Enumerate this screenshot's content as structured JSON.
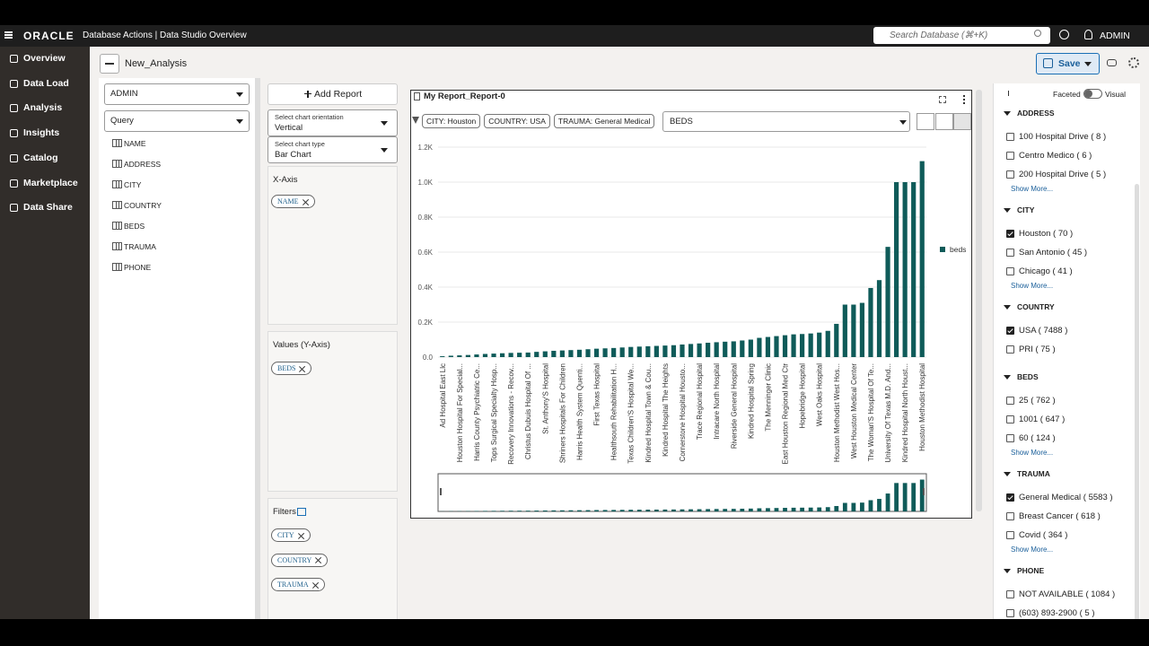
{
  "header": {
    "brand": "ORACLE",
    "product": "Database Actions | Data Studio Overview",
    "search_placeholder": "Search Database (⌘+K)",
    "user": "ADMIN"
  },
  "nav": [
    "Overview",
    "Data Load",
    "Analysis",
    "Insights",
    "Catalog",
    "Marketplace",
    "Data Share"
  ],
  "analysis": {
    "title": "New_Analysis",
    "save": "Save"
  },
  "source": {
    "schema": "ADMIN",
    "source": "Query",
    "fields": [
      "NAME",
      "ADDRESS",
      "CITY",
      "COUNTRY",
      "BEDS",
      "TRAUMA",
      "PHONE"
    ]
  },
  "config": {
    "add_report": "Add Report",
    "orientation_label": "Select chart orientation",
    "orientation": "Vertical",
    "type_label": "Select chart type",
    "chart_type": "Bar Chart",
    "x_axis_label": "X-Axis",
    "x_axis_fields": [
      "NAME"
    ],
    "y_axis_label": "Values (Y-Axis)",
    "y_axis_fields": [
      "BEDS"
    ],
    "filters_label": "Filters",
    "filters": [
      "CITY",
      "COUNTRY",
      "TRAUMA"
    ]
  },
  "report": {
    "title": "My Report_Report-0",
    "filter_chips": [
      "CITY: Houston",
      "COUNTRY: USA",
      "TRAUMA: General Medical"
    ],
    "measure": "BEDS"
  },
  "chart_data": {
    "type": "bar",
    "categories": [
      "Ad Hospital East Llc",
      null,
      "Houston Hospital For Special...",
      null,
      "Harris County Psychiatric Ce...",
      null,
      "Tops Surgical Specialty Hosp...",
      null,
      "Recovery Innovations - Recov...",
      null,
      "Christus Dubuis Hospital Of ...",
      null,
      "St. Anthony'S Hospital",
      null,
      "Shriners Hospitals For Children",
      null,
      "Harris Health System Quenti...",
      null,
      "First Texas Hospital",
      null,
      "Healthsouth Rehabilitation H...",
      null,
      "Texas Children'S Hospital We...",
      null,
      "Kindred Hospital Town & Cou...",
      null,
      "Kindred Hospital The Heights",
      null,
      "Cornerstone Hospital Housto...",
      null,
      "Trace Regional Hospital",
      null,
      "Intracare North Hospital",
      null,
      "Riverside General Hospital",
      null,
      "Kindred Hospital Spring",
      null,
      "The Menninger Clinic",
      null,
      "East Houston Regional Med Ctr",
      null,
      "Hopebridge Hospital",
      null,
      "West Oaks Hospital",
      null,
      "Houston Methodist West Hos...",
      null,
      "West Houston Medical Center",
      null,
      "The Woman'S Hospital Of Te...",
      null,
      "University Of Texas M.D. And...",
      null,
      "Kindred Hospital North Houst...",
      null,
      "Houston Methodist Hospital"
    ],
    "series": [
      {
        "name": "beds",
        "color": "#0f5b59",
        "values": [
          5,
          8,
          10,
          12,
          15,
          18,
          20,
          22,
          24,
          25,
          26,
          30,
          33,
          36,
          38,
          40,
          42,
          45,
          48,
          50,
          52,
          55,
          58,
          60,
          62,
          64,
          66,
          68,
          72,
          75,
          78,
          82,
          85,
          88,
          90,
          95,
          100,
          110,
          115,
          120,
          125,
          130,
          132,
          135,
          140,
          150,
          190,
          300,
          300,
          310,
          395,
          440,
          630,
          1000,
          1000,
          1000,
          1120
        ]
      }
    ],
    "ylim": [
      0,
      1200
    ],
    "yticks": [
      {
        "value": 0,
        "label": "0.0"
      },
      {
        "value": 200,
        "label": "0.2K"
      },
      {
        "value": 400,
        "label": "0.4K"
      },
      {
        "value": 600,
        "label": "0.6K"
      },
      {
        "value": 800,
        "label": "0.8K"
      },
      {
        "value": 1000,
        "label": "1.0K"
      },
      {
        "value": 1200,
        "label": "1.2K"
      }
    ],
    "grid": true,
    "legend": "right"
  },
  "facets": {
    "faceted": "Faceted",
    "visual": "Visual",
    "groups": [
      {
        "name": "ADDRESS",
        "items": [
          {
            "label": "100 Hospital Drive ( 8 )",
            "checked": false
          },
          {
            "label": "Centro Medico ( 6 )",
            "checked": false
          },
          {
            "label": "200 Hospital Drive ( 5 )",
            "checked": false
          }
        ],
        "more": "Show More..."
      },
      {
        "name": "CITY",
        "items": [
          {
            "label": "Houston ( 70 )",
            "checked": true
          },
          {
            "label": "San Antonio ( 45 )",
            "checked": false
          },
          {
            "label": "Chicago ( 41 )",
            "checked": false
          }
        ],
        "more": "Show More..."
      },
      {
        "name": "COUNTRY",
        "items": [
          {
            "label": "USA ( 7488 )",
            "checked": true
          },
          {
            "label": "PRI ( 75 )",
            "checked": false
          }
        ]
      },
      {
        "name": "BEDS",
        "items": [
          {
            "label": "25 ( 762 )",
            "checked": false
          },
          {
            "label": "1001 ( 647 )",
            "checked": false
          },
          {
            "label": "60 ( 124 )",
            "checked": false
          }
        ],
        "more": "Show More..."
      },
      {
        "name": "TRAUMA",
        "items": [
          {
            "label": "General Medical ( 5583 )",
            "checked": true
          },
          {
            "label": "Breast Cancer ( 618 )",
            "checked": false
          },
          {
            "label": "Covid ( 364 )",
            "checked": false
          }
        ],
        "more": "Show More..."
      },
      {
        "name": "PHONE",
        "items": [
          {
            "label": "NOT AVAILABLE ( 1084 )",
            "checked": false
          },
          {
            "label": "(603) 893-2900 ( 5 )",
            "checked": false
          }
        ]
      }
    ]
  }
}
